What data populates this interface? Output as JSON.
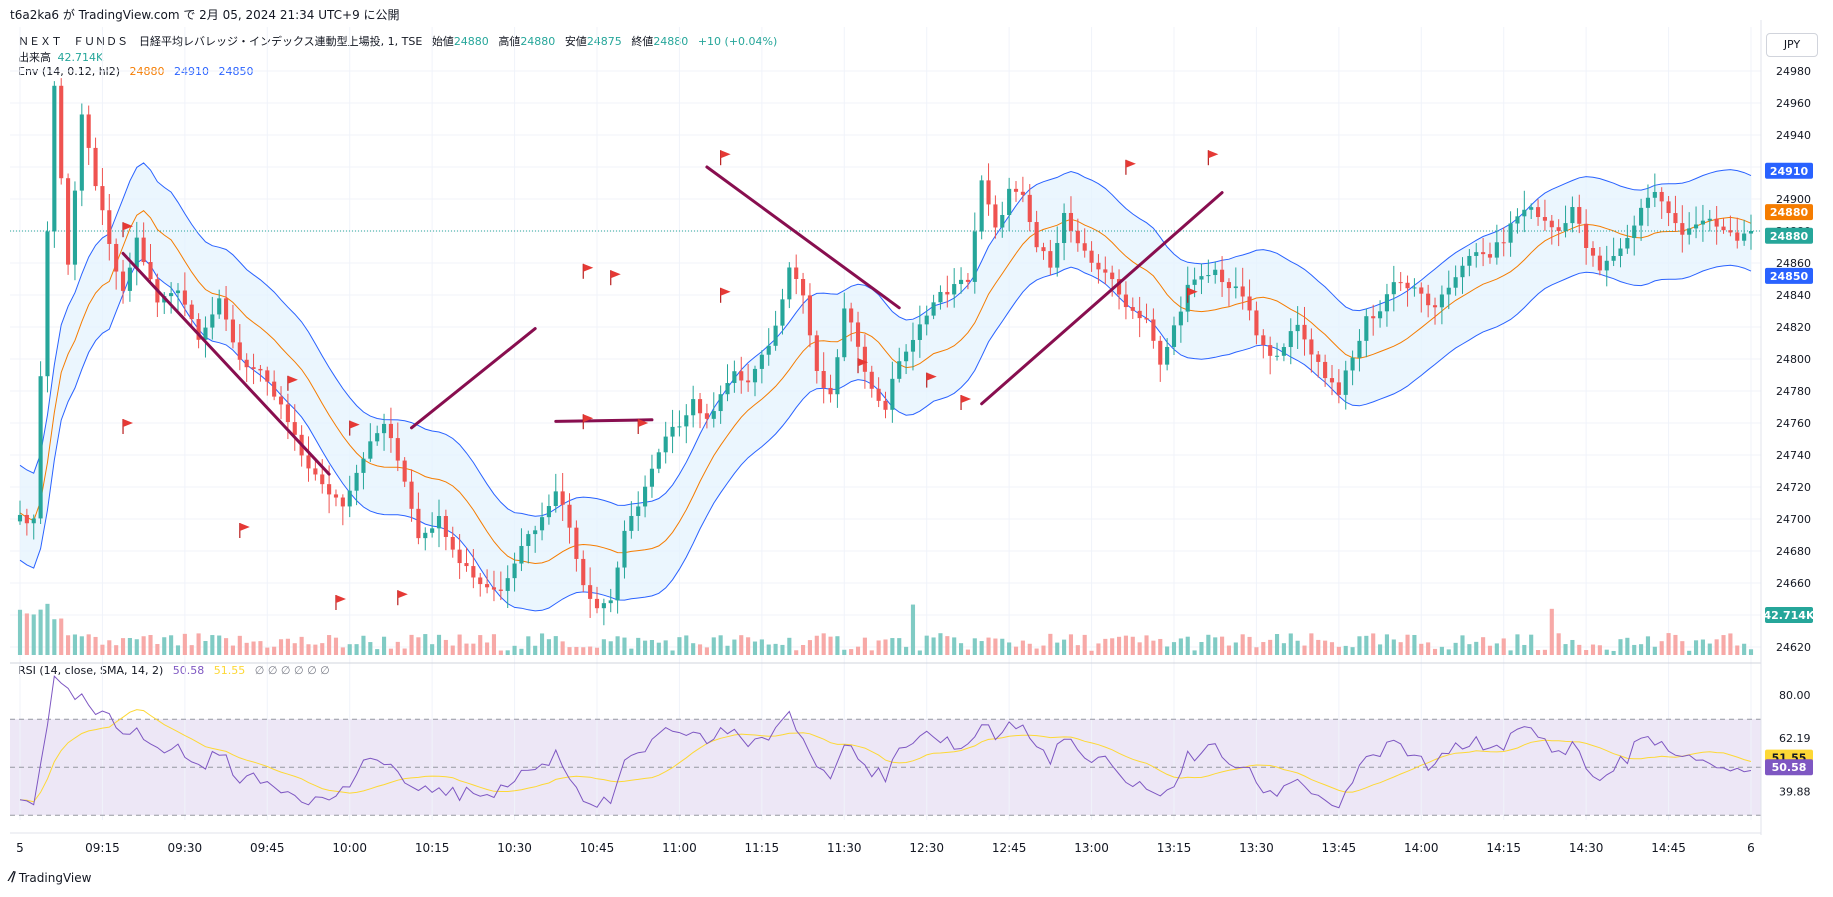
{
  "header": {
    "published": "t6a2ka6 が TradingView.com で 2月 05, 2024 21:34 UTC+9 に公開",
    "symbol": "ＮＥＸＴ　ＦＵＮＤＳ　日経平均レバレッジ・インデックス連動型上場投, 1, TSE",
    "open_label": "始値",
    "open": "24880",
    "high_label": "高値",
    "high": "24880",
    "low_label": "安値",
    "low": "24875",
    "close_label": "終値",
    "close": "24880",
    "change": "+10 (+0.04%)",
    "volume_label": "出来高",
    "volume": "42.714K",
    "env_label": "Env (14, 0.12, hl2)",
    "env_basis": "24880",
    "env_upper": "24910",
    "env_lower": "24850",
    "rsi_label": "RSI (14, close, SMA, 14, 2)",
    "rsi_value": "50.58",
    "rsi_ma": "51.55",
    "rsi_extra": "∅ ∅ ∅ ∅ ∅ ∅",
    "currency": "JPY"
  },
  "footer": {
    "brand": "TradingView"
  },
  "colors": {
    "up": "#26a69a",
    "down": "#ef5350",
    "basis": "#f57c00",
    "band": "#2962ff",
    "band_fill": "#e3f2fd",
    "trendline": "#880e4f",
    "flag": "#e53935",
    "rsi": "#7e57c2",
    "rsi_ma": "#fdd835",
    "rsi_bg": "#ede7f6"
  },
  "chart_data": {
    "type": "candlestick",
    "price_axis": {
      "ticks": [
        24620,
        24640,
        24660,
        24680,
        24700,
        24720,
        24740,
        24760,
        24780,
        24800,
        24820,
        24840,
        24860,
        24880,
        24900,
        24920,
        24940,
        24960,
        24980
      ],
      "range": [
        24615,
        24995
      ]
    },
    "time_axis": {
      "labels": [
        "5",
        "09:15",
        "09:30",
        "09:45",
        "10:00",
        "10:15",
        "10:30",
        "10:45",
        "11:00",
        "11:15",
        "11:30",
        "12:30",
        "12:45",
        "13:00",
        "13:15",
        "13:30",
        "13:45",
        "14:00",
        "14:15",
        "14:30",
        "14:45",
        "6"
      ]
    },
    "current_price": 24880,
    "price_labels": {
      "upper": "24910",
      "basis": "24880",
      "last": "24880",
      "lower": "24850",
      "volume": "42.714K"
    },
    "rsi_axis": {
      "ticks": [
        "80.00",
        "62.19",
        "39.88"
      ],
      "levels": [
        70,
        50,
        30
      ],
      "range": [
        28,
        88
      ],
      "value_label": "50.58",
      "ma_label": "51.55"
    },
    "path": [
      [
        0,
        24700
      ],
      [
        2,
        24700
      ],
      [
        5,
        24970
      ],
      [
        7,
        24860
      ],
      [
        9,
        24950
      ],
      [
        11,
        24910
      ],
      [
        13,
        24870
      ],
      [
        15,
        24840
      ],
      [
        17,
        24875
      ],
      [
        20,
        24835
      ],
      [
        23,
        24845
      ],
      [
        26,
        24815
      ],
      [
        29,
        24835
      ],
      [
        32,
        24800
      ],
      [
        35,
        24790
      ],
      [
        38,
        24770
      ],
      [
        41,
        24740
      ],
      [
        44,
        24720
      ],
      [
        47,
        24710
      ],
      [
        50,
        24740
      ],
      [
        53,
        24760
      ],
      [
        56,
        24725
      ],
      [
        58,
        24690
      ],
      [
        61,
        24700
      ],
      [
        64,
        24675
      ],
      [
        67,
        24660
      ],
      [
        70,
        24655
      ],
      [
        73,
        24685
      ],
      [
        76,
        24700
      ],
      [
        78,
        24720
      ],
      [
        80,
        24695
      ],
      [
        82,
        24660
      ],
      [
        84,
        24645
      ],
      [
        86,
        24650
      ],
      [
        88,
        24690
      ],
      [
        90,
        24710
      ],
      [
        92,
        24730
      ],
      [
        94,
        24750
      ],
      [
        96,
        24760
      ],
      [
        98,
        24775
      ],
      [
        100,
        24760
      ],
      [
        102,
        24780
      ],
      [
        104,
        24790
      ],
      [
        106,
        24785
      ],
      [
        108,
        24800
      ],
      [
        110,
        24820
      ],
      [
        112,
        24860
      ],
      [
        114,
        24840
      ],
      [
        116,
        24790
      ],
      [
        118,
        24775
      ],
      [
        120,
        24830
      ],
      [
        122,
        24810
      ],
      [
        124,
        24780
      ],
      [
        126,
        24770
      ],
      [
        128,
        24800
      ],
      [
        130,
        24810
      ],
      [
        132,
        24830
      ],
      [
        134,
        24840
      ],
      [
        136,
        24845
      ],
      [
        138,
        24850
      ],
      [
        140,
        24910
      ],
      [
        142,
        24880
      ],
      [
        144,
        24905
      ],
      [
        146,
        24900
      ],
      [
        148,
        24870
      ],
      [
        150,
        24860
      ],
      [
        152,
        24890
      ],
      [
        154,
        24870
      ],
      [
        156,
        24860
      ],
      [
        158,
        24855
      ],
      [
        160,
        24840
      ],
      [
        162,
        24830
      ],
      [
        164,
        24825
      ],
      [
        166,
        24795
      ],
      [
        168,
        24820
      ],
      [
        170,
        24845
      ],
      [
        172,
        24850
      ],
      [
        174,
        24855
      ],
      [
        176,
        24845
      ],
      [
        178,
        24840
      ],
      [
        180,
        24815
      ],
      [
        182,
        24800
      ],
      [
        184,
        24810
      ],
      [
        186,
        24820
      ],
      [
        188,
        24805
      ],
      [
        190,
        24790
      ],
      [
        192,
        24780
      ],
      [
        194,
        24800
      ],
      [
        196,
        24825
      ],
      [
        198,
        24830
      ],
      [
        200,
        24850
      ],
      [
        202,
        24845
      ],
      [
        204,
        24840
      ],
      [
        206,
        24830
      ],
      [
        208,
        24845
      ],
      [
        210,
        24860
      ],
      [
        212,
        24865
      ],
      [
        214,
        24865
      ],
      [
        216,
        24875
      ],
      [
        218,
        24890
      ],
      [
        220,
        24895
      ],
      [
        222,
        24885
      ],
      [
        224,
        24880
      ],
      [
        226,
        24895
      ],
      [
        228,
        24870
      ],
      [
        230,
        24855
      ],
      [
        232,
        24865
      ],
      [
        234,
        24875
      ],
      [
        236,
        24895
      ],
      [
        238,
        24905
      ],
      [
        240,
        24890
      ],
      [
        242,
        24880
      ],
      [
        244,
        24885
      ],
      [
        246,
        24885
      ],
      [
        248,
        24880
      ],
      [
        250,
        24875
      ],
      [
        252,
        24880
      ]
    ],
    "rsi_path": [
      [
        0,
        36
      ],
      [
        2,
        36
      ],
      [
        5,
        86
      ],
      [
        7,
        80
      ],
      [
        9,
        78
      ],
      [
        11,
        72
      ],
      [
        13,
        70
      ],
      [
        15,
        64
      ],
      [
        17,
        68
      ],
      [
        20,
        56
      ],
      [
        23,
        58
      ],
      [
        26,
        50
      ],
      [
        29,
        56
      ],
      [
        32,
        46
      ],
      [
        35,
        44
      ],
      [
        38,
        42
      ],
      [
        41,
        38
      ],
      [
        44,
        36
      ],
      [
        47,
        40
      ],
      [
        50,
        50
      ],
      [
        53,
        54
      ],
      [
        56,
        44
      ],
      [
        58,
        38
      ],
      [
        61,
        42
      ],
      [
        64,
        38
      ],
      [
        67,
        40
      ],
      [
        70,
        40
      ],
      [
        73,
        48
      ],
      [
        76,
        50
      ],
      [
        78,
        56
      ],
      [
        80,
        46
      ],
      [
        82,
        38
      ],
      [
        84,
        34
      ],
      [
        86,
        36
      ],
      [
        88,
        50
      ],
      [
        90,
        56
      ],
      [
        92,
        60
      ],
      [
        94,
        64
      ],
      [
        96,
        62
      ],
      [
        98,
        66
      ],
      [
        100,
        60
      ],
      [
        102,
        64
      ],
      [
        104,
        66
      ],
      [
        106,
        60
      ],
      [
        108,
        62
      ],
      [
        110,
        64
      ],
      [
        112,
        72
      ],
      [
        114,
        62
      ],
      [
        116,
        50
      ],
      [
        118,
        48
      ],
      [
        120,
        62
      ],
      [
        122,
        56
      ],
      [
        124,
        48
      ],
      [
        126,
        46
      ],
      [
        128,
        56
      ],
      [
        130,
        58
      ],
      [
        132,
        62
      ],
      [
        134,
        62
      ],
      [
        136,
        60
      ],
      [
        138,
        58
      ],
      [
        140,
        70
      ],
      [
        142,
        62
      ],
      [
        144,
        68
      ],
      [
        146,
        66
      ],
      [
        148,
        58
      ],
      [
        150,
        54
      ],
      [
        152,
        62
      ],
      [
        154,
        56
      ],
      [
        156,
        52
      ],
      [
        158,
        52
      ],
      [
        160,
        46
      ],
      [
        162,
        44
      ],
      [
        164,
        42
      ],
      [
        166,
        36
      ],
      [
        168,
        44
      ],
      [
        170,
        54
      ],
      [
        172,
        56
      ],
      [
        174,
        58
      ],
      [
        176,
        52
      ],
      [
        178,
        50
      ],
      [
        180,
        44
      ],
      [
        182,
        38
      ],
      [
        184,
        42
      ],
      [
        186,
        46
      ],
      [
        188,
        40
      ],
      [
        190,
        36
      ],
      [
        192,
        34
      ],
      [
        194,
        42
      ],
      [
        196,
        54
      ],
      [
        198,
        56
      ],
      [
        200,
        60
      ],
      [
        202,
        56
      ],
      [
        204,
        52
      ],
      [
        206,
        50
      ],
      [
        208,
        56
      ],
      [
        210,
        60
      ],
      [
        212,
        60
      ],
      [
        214,
        58
      ],
      [
        216,
        60
      ],
      [
        218,
        64
      ],
      [
        220,
        66
      ],
      [
        222,
        60
      ],
      [
        224,
        56
      ],
      [
        226,
        60
      ],
      [
        228,
        50
      ],
      [
        230,
        44
      ],
      [
        232,
        50
      ],
      [
        234,
        54
      ],
      [
        236,
        62
      ],
      [
        238,
        62
      ],
      [
        240,
        56
      ],
      [
        242,
        52
      ],
      [
        244,
        54
      ],
      [
        246,
        52
      ],
      [
        248,
        50
      ],
      [
        250,
        48
      ],
      [
        252,
        50
      ]
    ],
    "trendlines": [
      {
        "from": [
          15,
          24866
        ],
        "to": [
          45,
          24728
        ]
      },
      {
        "from": [
          57,
          24757
        ],
        "to": [
          75,
          24819
        ]
      },
      {
        "from": [
          78,
          24761
        ],
        "to": [
          92,
          24762
        ]
      },
      {
        "from": [
          100,
          24920
        ],
        "to": [
          128,
          24832
        ]
      },
      {
        "from": [
          140,
          24772
        ],
        "to": [
          175,
          24904
        ]
      }
    ],
    "flags": [
      [
        15,
        24878
      ],
      [
        15,
        24755
      ],
      [
        39,
        24782
      ],
      [
        32,
        24690
      ],
      [
        48,
        24754
      ],
      [
        46,
        24645
      ],
      [
        55,
        24648
      ],
      [
        82,
        24852
      ],
      [
        86,
        24848
      ],
      [
        82,
        24758
      ],
      [
        90,
        24755
      ],
      [
        102,
        24923
      ],
      [
        102,
        24837
      ],
      [
        122,
        24793
      ],
      [
        132,
        24784
      ],
      [
        137,
        24770
      ],
      [
        161,
        24917
      ],
      [
        173,
        24923
      ],
      [
        170,
        24837
      ]
    ]
  }
}
